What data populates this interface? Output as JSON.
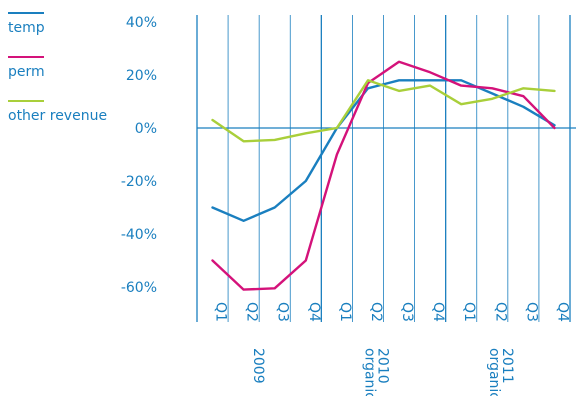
{
  "chart_data": {
    "type": "line",
    "categories": [
      "Q1",
      "Q2",
      "Q3",
      "Q4",
      "Q1",
      "Q2",
      "Q3",
      "Q4",
      "Q1",
      "Q2",
      "Q3",
      "Q4"
    ],
    "year_groups": [
      {
        "label": "2009",
        "sublabel": ""
      },
      {
        "label": "2010",
        "sublabel": "organic"
      },
      {
        "label": "2011",
        "sublabel": "organic"
      }
    ],
    "ylim": [
      -70,
      40
    ],
    "yticks": [
      -60,
      -40,
      -20,
      0,
      20,
      40
    ],
    "ytick_labels": [
      "-60%",
      "-40%",
      "-20%",
      "0%",
      "20%",
      "40%"
    ],
    "series": [
      {
        "name": "temp",
        "color": "#1a7fbf",
        "values": [
          -30,
          -35,
          -30,
          -20,
          0,
          15,
          18,
          18,
          18,
          13,
          8,
          1
        ]
      },
      {
        "name": "perm",
        "color": "#d4127a",
        "values": [
          -50,
          -61,
          -60.5,
          -50,
          -10,
          17,
          25,
          21,
          16,
          15,
          12,
          0
        ]
      },
      {
        "name": "other revenue",
        "color": "#a9cf3a",
        "values": [
          3,
          -5,
          -4.5,
          -2,
          0,
          18,
          14,
          16,
          9,
          11,
          15,
          14
        ]
      }
    ],
    "grid": true
  }
}
